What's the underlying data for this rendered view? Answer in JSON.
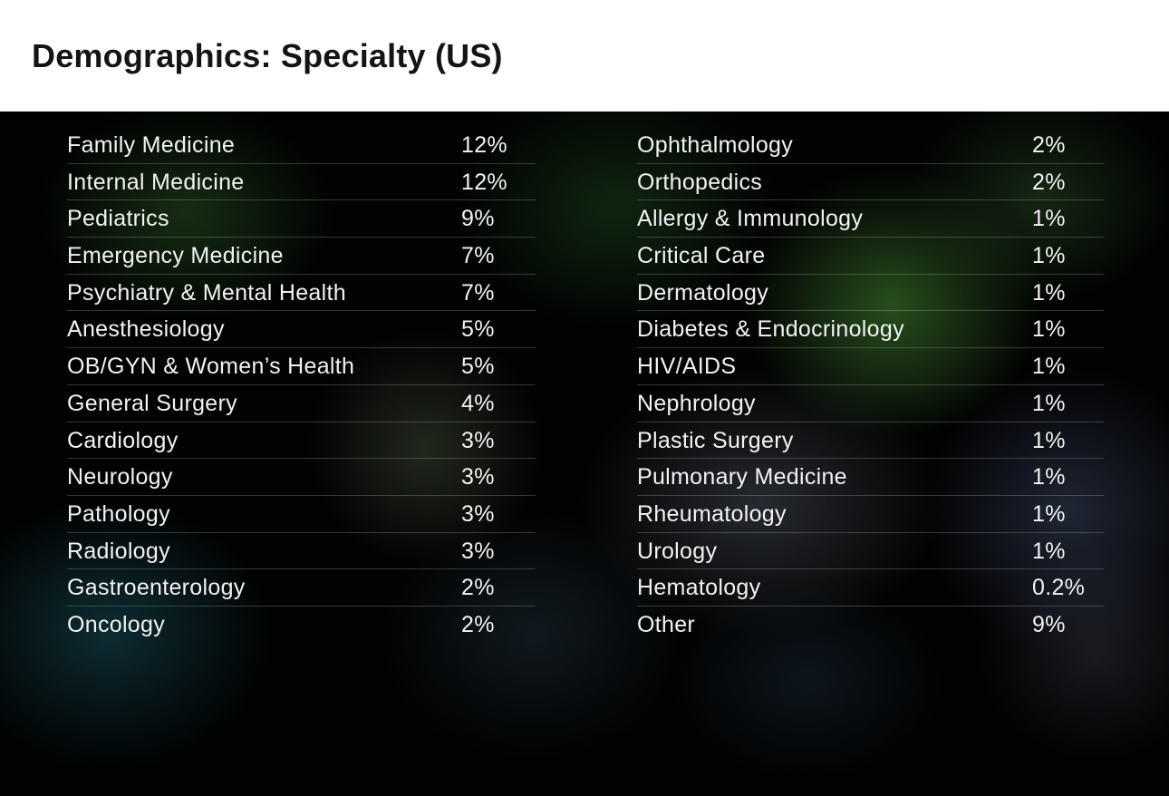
{
  "page": {
    "title": "Demographics: Specialty (US)"
  },
  "colors": {
    "header_bg": "#ffffff",
    "title_text": "#141414",
    "panel_bg": "#020303",
    "row_text": "#f2f2f2",
    "row_divider": "rgba(255,255,255,0.20)",
    "accent_green": "#3f8a3a",
    "accent_teal": "#1f5a66"
  },
  "table": {
    "left_column": [
      {
        "specialty": "Family Medicine",
        "percent": "12%"
      },
      {
        "specialty": "Internal Medicine",
        "percent": "12%"
      },
      {
        "specialty": "Pediatrics",
        "percent": "9%"
      },
      {
        "specialty": "Emergency Medicine",
        "percent": "7%"
      },
      {
        "specialty": "Psychiatry & Mental Health",
        "percent": "7%"
      },
      {
        "specialty": "Anesthesiology",
        "percent": "5%"
      },
      {
        "specialty": "OB/GYN & Women’s Health",
        "percent": "5%"
      },
      {
        "specialty": "General Surgery",
        "percent": "4%"
      },
      {
        "specialty": "Cardiology",
        "percent": "3%"
      },
      {
        "specialty": "Neurology",
        "percent": "3%"
      },
      {
        "specialty": "Pathology",
        "percent": "3%"
      },
      {
        "specialty": "Radiology",
        "percent": "3%"
      },
      {
        "specialty": "Gastroenterology",
        "percent": "2%"
      },
      {
        "specialty": "Oncology",
        "percent": "2%"
      }
    ],
    "right_column": [
      {
        "specialty": "Ophthalmology",
        "percent": "2%"
      },
      {
        "specialty": "Orthopedics",
        "percent": "2%"
      },
      {
        "specialty": "Allergy & Immunology",
        "percent": "1%"
      },
      {
        "specialty": "Critical Care",
        "percent": "1%"
      },
      {
        "specialty": "Dermatology",
        "percent": "1%"
      },
      {
        "specialty": "Diabetes & Endocrinology",
        "percent": "1%"
      },
      {
        "specialty": "HIV/AIDS",
        "percent": "1%"
      },
      {
        "specialty": "Nephrology",
        "percent": "1%"
      },
      {
        "specialty": "Plastic Surgery",
        "percent": "1%"
      },
      {
        "specialty": "Pulmonary Medicine",
        "percent": "1%"
      },
      {
        "specialty": "Rheumatology",
        "percent": "1%"
      },
      {
        "specialty": "Urology",
        "percent": "1%"
      },
      {
        "specialty": "Hematology",
        "percent": "0.2%"
      },
      {
        "specialty": "Other",
        "percent": "9%"
      }
    ]
  }
}
